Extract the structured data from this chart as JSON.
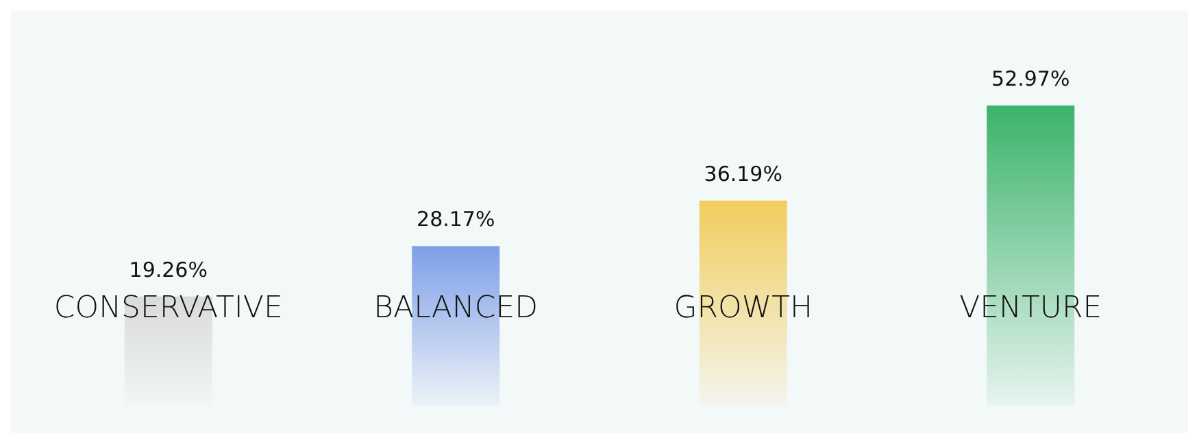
{
  "chart_data": {
    "type": "bar",
    "categories": [
      "CONSERVATIVE",
      "BALANCED",
      "GROWTH",
      "VENTURE"
    ],
    "values": [
      19.26,
      28.17,
      36.19,
      52.97
    ],
    "value_labels": [
      "19.26%",
      "28.17%",
      "36.19%",
      "52.97%"
    ],
    "colors": [
      "#d9dadb",
      "#7e9fe8",
      "#f2cd5c",
      "#3bb36a"
    ]
  }
}
